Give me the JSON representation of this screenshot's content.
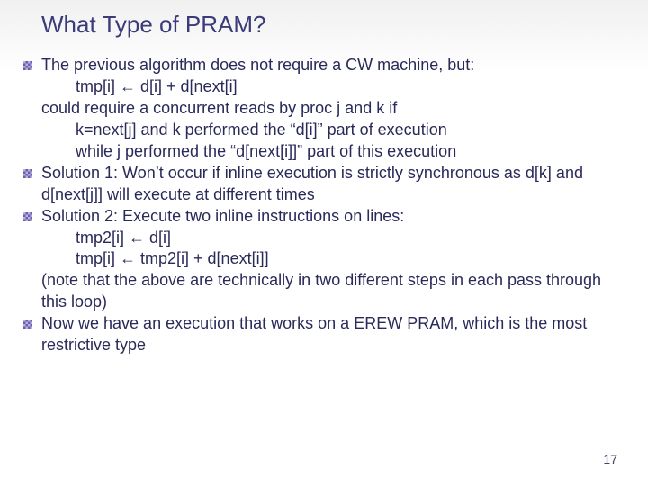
{
  "title": "What Type of PRAM?",
  "lines": {
    "b1": "The previous algorithm does not require a CW machine, but:",
    "l2": "tmp[i] ← d[i] + d[next[i]",
    "l3": "could require a concurrent reads by proc j and k if",
    "l4": "k=next[j] and k performed the “d[i]” part of execution",
    "l5": "while j performed the “d[next[i]]” part of this execution",
    "b2": "Solution 1: Won’t occur if inline execution is strictly synchronous as d[k] and d[next[j]] will execute at different times",
    "b3": "Solution 2: Execute two inline instructions on lines:",
    "l9": "tmp2[i] ← d[i]",
    "l10": "tmp[i] ← tmp2[i] + d[next[i]]",
    "l11": "(note that the above are technically in two different steps in each pass through this loop)",
    "b4": "Now we have an execution that works on a EREW PRAM, which is the most restrictive type"
  },
  "page": "17",
  "colors": {
    "title": "#3b3b7a",
    "text": "#2a2a5a",
    "bullet_dark": "#6a5eb0",
    "bullet_light": "#b9b2dd",
    "background_top": "#f0f0f0",
    "background_bottom": "#ffffff"
  },
  "fonts": {
    "title_size_pt": 20,
    "body_size_pt": 14,
    "family": "Verdana"
  }
}
